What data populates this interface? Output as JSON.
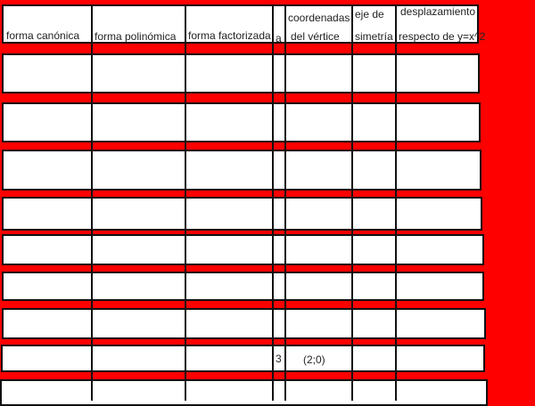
{
  "background_color": "#ff0000",
  "table": {
    "headers": [
      {
        "line1": "",
        "line2": "forma canónica"
      },
      {
        "line1": "",
        "line2": "forma polinómica"
      },
      {
        "line1": "",
        "line2": "forma factorizada"
      },
      {
        "line1": "",
        "line2": "a"
      },
      {
        "line1": "coordenadas",
        "line2": "del vértice"
      },
      {
        "line1": "eje de",
        "line2": "simetría"
      },
      {
        "line1": "desplazamiento",
        "line2": "respecto de y=x^2"
      }
    ],
    "rows": [
      [
        "",
        "",
        "",
        "",
        "",
        "",
        ""
      ],
      [
        "",
        "",
        "",
        "",
        "",
        "",
        ""
      ],
      [
        "",
        "",
        "",
        "",
        "",
        "",
        ""
      ],
      [
        "",
        "",
        "",
        "",
        "",
        "",
        ""
      ],
      [
        "",
        "",
        "",
        "",
        "",
        "",
        ""
      ],
      [
        "",
        "",
        "",
        "",
        "",
        "",
        ""
      ],
      [
        "",
        "",
        "",
        "",
        "",
        "",
        ""
      ],
      [
        "",
        "",
        "",
        "3",
        "(2;0)",
        "",
        ""
      ],
      [
        "",
        "",
        "",
        "",
        "",
        "",
        ""
      ]
    ]
  }
}
